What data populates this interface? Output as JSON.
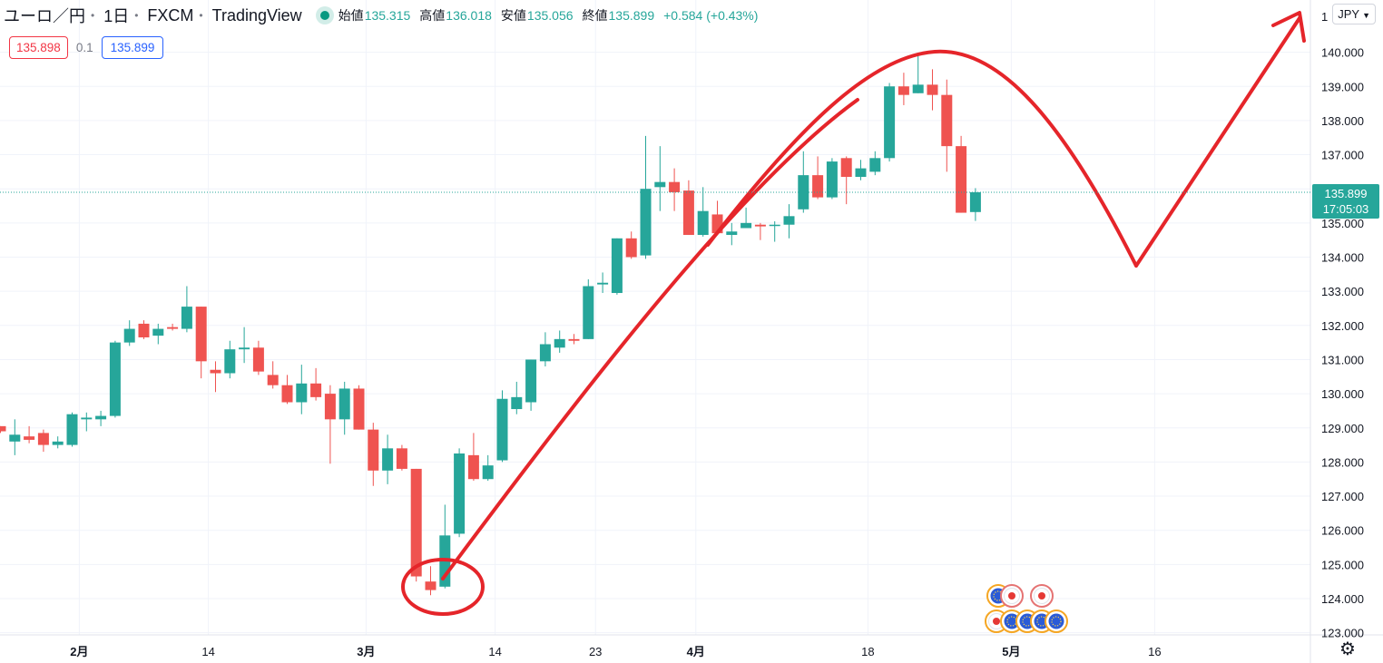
{
  "header": {
    "symbol": "ユーロ／円",
    "interval": "1日",
    "source": "FXCM",
    "platform": "TradingView",
    "open_label": "始値",
    "open": "135.315",
    "high_label": "高値",
    "high": "136.018",
    "low_label": "安値",
    "low": "135.056",
    "close_label": "終値",
    "close": "135.899",
    "change": "+0.584 (+0.43%)"
  },
  "bidask": {
    "bid": "135.898",
    "spread": "0.1",
    "ask": "135.899"
  },
  "currency_button": "JPY",
  "last_price": {
    "price": "135.899",
    "countdown": "17:05:03"
  },
  "icons": {
    "settings": "gear-icon",
    "status": "market-open-dot",
    "currency_menu": "chevron-down-icon"
  },
  "colors": {
    "up": "#26a69a",
    "down": "#ef5350",
    "annotation": "#e5252a",
    "last_price_bg": "#26a69a"
  },
  "chart_data": {
    "type": "candlestick",
    "ylim": [
      122.9,
      141.4
    ],
    "y_ticks": [
      "140.000",
      "139.000",
      "138.000",
      "137.000",
      "136.000",
      "135.000",
      "134.000",
      "133.000",
      "132.000",
      "131.000",
      "130.000",
      "129.000",
      "128.000",
      "127.000",
      "126.000",
      "125.000",
      "124.000",
      "123.000"
    ],
    "x_labels": [
      {
        "label": "2月",
        "bold": true,
        "at": 5.5
      },
      {
        "label": "14",
        "bold": false,
        "at": 14.5
      },
      {
        "label": "3月",
        "bold": true,
        "at": 25.5
      },
      {
        "label": "14",
        "bold": false,
        "at": 34.5
      },
      {
        "label": "23",
        "bold": false,
        "at": 41.5
      },
      {
        "label": "4月",
        "bold": true,
        "at": 48.5
      },
      {
        "label": "18",
        "bold": false,
        "at": 60.5
      },
      {
        "label": "5月",
        "bold": true,
        "at": 70.5
      },
      {
        "label": "16",
        "bold": false,
        "at": 80.5
      }
    ],
    "candles": [
      [
        129.05,
        129.05,
        128.85,
        128.9
      ],
      [
        128.6,
        129.25,
        128.2,
        128.8
      ],
      [
        128.75,
        129.05,
        128.55,
        128.65
      ],
      [
        128.85,
        128.95,
        128.3,
        128.5
      ],
      [
        128.5,
        128.75,
        128.4,
        128.6
      ],
      [
        128.5,
        129.45,
        128.45,
        129.4
      ],
      [
        129.25,
        129.45,
        128.9,
        129.3
      ],
      [
        129.25,
        129.5,
        129.05,
        129.35
      ],
      [
        129.35,
        131.55,
        129.3,
        131.5
      ],
      [
        131.5,
        132.15,
        131.4,
        131.9
      ],
      [
        132.05,
        132.15,
        131.6,
        131.65
      ],
      [
        131.7,
        132.05,
        131.45,
        131.9
      ],
      [
        131.95,
        132.05,
        131.85,
        131.9
      ],
      [
        131.9,
        133.15,
        131.8,
        132.55
      ],
      [
        132.55,
        132.55,
        130.45,
        130.95
      ],
      [
        130.7,
        130.95,
        130.05,
        130.6
      ],
      [
        130.6,
        131.55,
        130.45,
        131.3
      ],
      [
        131.3,
        131.95,
        130.9,
        131.35
      ],
      [
        131.35,
        131.55,
        130.55,
        130.65
      ],
      [
        130.55,
        130.95,
        130.15,
        130.25
      ],
      [
        130.25,
        130.55,
        129.7,
        129.75
      ],
      [
        129.75,
        130.85,
        129.4,
        130.3
      ],
      [
        130.3,
        130.75,
        129.8,
        129.9
      ],
      [
        130.0,
        130.25,
        127.95,
        129.25
      ],
      [
        129.25,
        130.35,
        128.8,
        130.15
      ],
      [
        130.15,
        130.25,
        128.95,
        128.95
      ],
      [
        128.95,
        129.15,
        127.3,
        127.75
      ],
      [
        127.75,
        128.8,
        127.35,
        128.4
      ],
      [
        128.4,
        128.5,
        127.75,
        127.8
      ],
      [
        127.8,
        127.8,
        124.5,
        124.65
      ],
      [
        124.5,
        124.95,
        124.1,
        124.25
      ],
      [
        124.35,
        126.75,
        124.3,
        125.85
      ],
      [
        125.9,
        128.4,
        125.8,
        128.25
      ],
      [
        128.2,
        128.85,
        127.45,
        127.5
      ],
      [
        127.5,
        128.2,
        127.45,
        127.9
      ],
      [
        128.05,
        130.1,
        128.0,
        129.85
      ],
      [
        129.55,
        130.35,
        129.4,
        129.9
      ],
      [
        129.75,
        131.0,
        129.5,
        131.0
      ],
      [
        130.95,
        131.8,
        130.8,
        131.45
      ],
      [
        131.35,
        131.85,
        131.2,
        131.6
      ],
      [
        131.6,
        131.75,
        131.45,
        131.55
      ],
      [
        131.6,
        133.35,
        131.6,
        133.15
      ],
      [
        133.2,
        133.55,
        132.95,
        133.25
      ],
      [
        132.95,
        134.55,
        132.9,
        134.55
      ],
      [
        134.55,
        134.75,
        133.95,
        134.0
      ],
      [
        134.05,
        137.55,
        133.95,
        136.0
      ],
      [
        136.05,
        137.25,
        135.35,
        136.2
      ],
      [
        136.2,
        136.6,
        135.35,
        135.9
      ],
      [
        135.95,
        136.25,
        134.65,
        134.65
      ],
      [
        134.65,
        136.05,
        134.6,
        135.35
      ],
      [
        135.25,
        135.65,
        134.65,
        134.7
      ],
      [
        134.65,
        135.0,
        134.35,
        134.75
      ],
      [
        134.85,
        135.45,
        134.85,
        135.0
      ],
      [
        134.95,
        135.0,
        134.5,
        134.9
      ],
      [
        134.95,
        135.05,
        134.45,
        134.95
      ],
      [
        134.95,
        135.55,
        134.55,
        135.2
      ],
      [
        135.4,
        137.1,
        135.3,
        136.4
      ],
      [
        136.4,
        136.95,
        135.7,
        135.75
      ],
      [
        135.75,
        136.9,
        135.7,
        136.8
      ],
      [
        136.9,
        136.95,
        135.55,
        136.35
      ],
      [
        136.35,
        136.85,
        136.25,
        136.6
      ],
      [
        136.5,
        137.1,
        136.4,
        136.9
      ],
      [
        136.9,
        139.1,
        136.8,
        139.0
      ],
      [
        139.0,
        139.4,
        138.45,
        138.75
      ],
      [
        138.8,
        139.9,
        138.8,
        139.05
      ],
      [
        139.05,
        139.5,
        138.3,
        138.75
      ],
      [
        138.75,
        139.2,
        136.5,
        137.25
      ],
      [
        137.25,
        137.55,
        135.3,
        135.3
      ],
      [
        135.32,
        136.02,
        135.06,
        135.9
      ]
    ]
  }
}
